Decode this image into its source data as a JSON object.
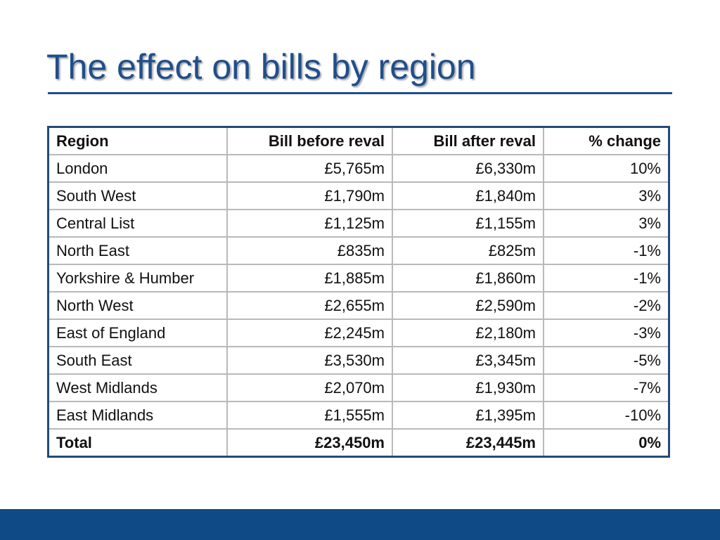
{
  "slide": {
    "title": "The effect on bills by region"
  },
  "table": {
    "headers": {
      "region": "Region",
      "before": "Bill before reval",
      "after": "Bill after reval",
      "change": "% change"
    },
    "rows": [
      {
        "region": "London",
        "before": "£5,765m",
        "after": "£6,330m",
        "change": "10%"
      },
      {
        "region": "South West",
        "before": "£1,790m",
        "after": "£1,840m",
        "change": "3%"
      },
      {
        "region": "Central List",
        "before": "£1,125m",
        "after": "£1,155m",
        "change": "3%"
      },
      {
        "region": "North East",
        "before": "£835m",
        "after": "£825m",
        "change": "-1%"
      },
      {
        "region": "Yorkshire & Humber",
        "before": "£1,885m",
        "after": "£1,860m",
        "change": "-1%"
      },
      {
        "region": "North West",
        "before": "£2,655m",
        "after": "£2,590m",
        "change": "-2%"
      },
      {
        "region": "East of England",
        "before": "£2,245m",
        "after": "£2,180m",
        "change": "-3%"
      },
      {
        "region": "South East",
        "before": "£3,530m",
        "after": "£3,345m",
        "change": "-5%"
      },
      {
        "region": "West Midlands",
        "before": "£2,070m",
        "after": "£1,930m",
        "change": "-7%"
      },
      {
        "region": "East Midlands",
        "before": "£1,555m",
        "after": "£1,395m",
        "change": "-10%"
      }
    ],
    "total": {
      "region": "Total",
      "before": "£23,450m",
      "after": "£23,445m",
      "change": "0%"
    }
  },
  "colors": {
    "title": "#1f4e8c",
    "footer_bar": "#0f4a86",
    "table_border": "#244a7a"
  }
}
